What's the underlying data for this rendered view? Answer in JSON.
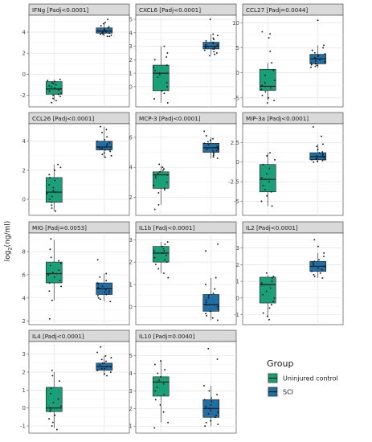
{
  "figure": {
    "ylabel_prefix": "log",
    "ylabel_sub": "2",
    "ylabel_suffix": "(ng/ml)",
    "legend": {
      "title": "Group",
      "items": [
        {
          "label": "Uninjured control",
          "color": "#19a079"
        },
        {
          "label": "SCI",
          "color": "#1f6ea6"
        }
      ]
    }
  },
  "chart_data": [
    {
      "type": "box",
      "title": "IFNg [Padj<0.0001]",
      "yticks": [
        -2,
        0,
        2,
        4
      ],
      "ylim": [
        -3.1,
        5.6
      ],
      "groups": [
        {
          "name": "Uninjured control",
          "q1": -1.9,
          "median": -1.4,
          "q3": -0.7,
          "whisker_low": -2.5,
          "whisker_high": -0.5,
          "points": [
            -0.5,
            -0.6,
            -0.7,
            -0.8,
            -0.9,
            -1.0,
            -1.1,
            -1.2,
            -1.3,
            -1.4,
            -1.5,
            -1.6,
            -1.8,
            -1.9,
            -2.0,
            -2.1,
            -2.3,
            -2.5,
            -2.7
          ]
        },
        {
          "name": "SCI",
          "q1": 3.9,
          "median": 4.1,
          "q3": 4.4,
          "whisker_low": 3.6,
          "whisker_high": 4.8,
          "points": [
            5.2,
            4.9,
            4.8,
            4.6,
            4.5,
            4.4,
            4.3,
            4.2,
            4.2,
            4.1,
            4.1,
            4.0,
            4.0,
            3.9,
            3.9,
            3.8,
            3.8,
            3.7,
            3.6,
            3.6
          ]
        }
      ]
    },
    {
      "type": "box",
      "title": "CXCL6 [Padj<0.0001]",
      "yticks": [
        0,
        1,
        2,
        3,
        4,
        5
      ],
      "ylim": [
        -1.5,
        5.3
      ],
      "groups": [
        {
          "name": "Uninjured control",
          "q1": -0.3,
          "median": 1.0,
          "q3": 1.6,
          "whisker_low": -1.2,
          "whisker_high": 3.0,
          "points": [
            3.0,
            2.5,
            2.2,
            2.0,
            1.6,
            1.4,
            1.2,
            1.0,
            0.9,
            0.7,
            0.3,
            0.0,
            -0.3,
            -0.5,
            -0.9,
            -1.2
          ]
        },
        {
          "name": "SCI",
          "q1": 2.8,
          "median": 3.0,
          "q3": 3.3,
          "whisker_low": 2.4,
          "whisker_high": 3.9,
          "points": [
            5.0,
            3.9,
            3.8,
            3.6,
            3.5,
            3.4,
            3.3,
            3.2,
            3.1,
            3.1,
            3.0,
            3.0,
            2.9,
            2.9,
            2.8,
            2.8,
            2.7,
            2.6,
            2.5,
            2.4,
            2.3
          ]
        }
      ]
    },
    {
      "type": "box",
      "title": "CCL27 [Padj=0.0044]",
      "yticks": [
        -5,
        0,
        5,
        10
      ],
      "ylim": [
        -6.8,
        11.5
      ],
      "groups": [
        {
          "name": "Uninjured control",
          "q1": -3.5,
          "median": -2.7,
          "q3": 0.7,
          "whisker_low": -5.5,
          "whisker_high": 2.0,
          "points": [
            8.2,
            7.8,
            7.0,
            4.3,
            2.0,
            0.5,
            -0.5,
            -1.5,
            -2.0,
            -2.5,
            -2.7,
            -3.0,
            -3.3,
            -3.8,
            -4.5,
            -5.0,
            -5.5,
            -6.0
          ]
        },
        {
          "name": "SCI",
          "q1": 1.8,
          "median": 2.8,
          "q3": 3.7,
          "whisker_low": 1.0,
          "whisker_high": 5.5,
          "points": [
            10.5,
            5.5,
            5.0,
            4.5,
            4.0,
            3.8,
            3.5,
            3.3,
            3.0,
            2.8,
            2.6,
            2.4,
            2.2,
            2.0,
            1.9,
            1.8,
            1.6,
            1.5,
            1.3,
            1.1
          ]
        }
      ]
    },
    {
      "type": "box",
      "title": "CCL26 [Padj<0.0001]",
      "yticks": [
        0,
        2,
        4
      ],
      "ylim": [
        -1.1,
        5.2
      ],
      "groups": [
        {
          "name": "Uninjured control",
          "q1": -0.2,
          "median": 0.5,
          "q3": 1.5,
          "whisker_low": -0.8,
          "whisker_high": 2.4,
          "points": [
            2.4,
            2.2,
            2.0,
            1.7,
            1.5,
            1.3,
            1.0,
            0.8,
            0.6,
            0.5,
            0.4,
            0.2,
            0.0,
            -0.2,
            -0.4,
            -0.6,
            -0.8
          ]
        },
        {
          "name": "SCI",
          "q1": 3.4,
          "median": 3.6,
          "q3": 4.0,
          "whisker_low": 2.9,
          "whisker_high": 5.0,
          "points": [
            5.0,
            4.8,
            4.6,
            4.3,
            4.1,
            4.0,
            3.9,
            3.8,
            3.7,
            3.6,
            3.6,
            3.5,
            3.5,
            3.4,
            3.4,
            3.3,
            3.2,
            3.1,
            3.0,
            2.9
          ]
        }
      ]
    },
    {
      "type": "box",
      "title": "MCP-3 [Padj<0.0001]",
      "yticks": [
        2,
        4,
        6
      ],
      "ylim": [
        0.8,
        6.9
      ],
      "groups": [
        {
          "name": "Uninjured control",
          "q1": 2.6,
          "median": 3.5,
          "q3": 3.7,
          "whisker_low": 1.5,
          "whisker_high": 4.1,
          "points": [
            4.2,
            4.0,
            3.9,
            3.8,
            3.7,
            3.6,
            3.5,
            3.4,
            3.3,
            3.0,
            2.8,
            2.6,
            2.5,
            2.3,
            1.5,
            1.2
          ]
        },
        {
          "name": "SCI",
          "q1": 5.0,
          "median": 5.3,
          "q3": 5.6,
          "whisker_low": 4.6,
          "whisker_high": 6.0,
          "points": [
            6.4,
            6.1,
            5.9,
            5.8,
            5.7,
            5.6,
            5.5,
            5.4,
            5.3,
            5.3,
            5.2,
            5.2,
            5.1,
            5.1,
            5.0,
            4.9,
            4.8,
            4.7,
            4.6
          ]
        }
      ]
    },
    {
      "type": "box",
      "title": "MIP-3a [Padj<0.0001]",
      "yticks": [
        -5.0,
        -2.5,
        0.0,
        2.5
      ],
      "ylim": [
        -6.8,
        4.9
      ],
      "groups": [
        {
          "name": "Uninjured control",
          "q1": -3.8,
          "median": -2.2,
          "q3": -0.3,
          "whisker_low": -5.6,
          "whisker_high": 1.2,
          "points": [
            1.2,
            0.8,
            0.3,
            -0.3,
            -0.8,
            -1.5,
            -2.0,
            -2.2,
            -2.5,
            -3.0,
            -3.5,
            -3.8,
            -4.3,
            -5.0,
            -5.6
          ]
        },
        {
          "name": "SCI",
          "q1": 0.3,
          "median": 0.7,
          "q3": 1.2,
          "whisker_low": 0.0,
          "whisker_high": 2.3,
          "points": [
            4.5,
            3.3,
            2.3,
            2.0,
            1.6,
            1.3,
            1.2,
            1.0,
            0.9,
            0.8,
            0.7,
            0.6,
            0.5,
            0.4,
            0.3,
            0.3,
            0.2,
            0.1,
            0.0
          ]
        }
      ]
    },
    {
      "type": "box",
      "title": "MIG [Padj=0.0053]",
      "yticks": [
        2,
        4,
        6,
        8
      ],
      "ylim": [
        1.7,
        9.6
      ],
      "groups": [
        {
          "name": "Uninjured control",
          "q1": 5.3,
          "median": 6.1,
          "q3": 7.1,
          "whisker_low": 3.8,
          "whisker_high": 9.0,
          "points": [
            9.1,
            8.2,
            7.5,
            7.2,
            7.0,
            6.8,
            6.4,
            6.2,
            6.0,
            5.8,
            5.5,
            5.3,
            5.0,
            4.6,
            3.8,
            2.2
          ]
        },
        {
          "name": "SCI",
          "q1": 4.3,
          "median": 4.8,
          "q3": 5.3,
          "whisker_low": 3.7,
          "whisker_high": 6.1,
          "points": [
            7.3,
            6.1,
            5.8,
            5.5,
            5.3,
            5.2,
            5.0,
            4.9,
            4.8,
            4.7,
            4.6,
            4.5,
            4.4,
            4.3,
            4.2,
            4.0,
            3.9,
            3.7
          ]
        }
      ]
    },
    {
      "type": "box",
      "title": "IL1b [Padj<0.0001]",
      "yticks": [
        0,
        1,
        2,
        3
      ],
      "ylim": [
        -0.8,
        3.3
      ],
      "groups": [
        {
          "name": "Uninjured control",
          "q1": 2.0,
          "median": 2.4,
          "q3": 2.7,
          "whisker_low": 1.5,
          "whisker_high": 2.9,
          "points": [
            2.9,
            2.8,
            2.7,
            2.6,
            2.5,
            2.5,
            2.4,
            2.4,
            2.3,
            2.2,
            2.1,
            2.0,
            1.9,
            1.7,
            1.5,
            1.3
          ]
        },
        {
          "name": "SCI",
          "q1": -0.2,
          "median": 0.1,
          "q3": 0.55,
          "whisker_low": -0.6,
          "whisker_high": 1.3,
          "points": [
            2.8,
            2.5,
            1.3,
            1.0,
            0.8,
            0.6,
            0.5,
            0.4,
            0.3,
            0.2,
            0.1,
            0.1,
            0.0,
            0.0,
            -0.1,
            -0.2,
            -0.3,
            -0.4,
            -0.5,
            -0.6
          ]
        }
      ]
    },
    {
      "type": "box",
      "title": "IL2 [Padj<0.0001]",
      "yticks": [
        -1,
        0,
        1,
        2,
        3
      ],
      "ylim": [
        -1.6,
        3.9
      ],
      "groups": [
        {
          "name": "Uninjured control",
          "q1": -0.3,
          "median": 0.8,
          "q3": 1.25,
          "whisker_low": -1.1,
          "whisker_high": 1.4,
          "points": [
            1.5,
            1.3,
            1.2,
            1.0,
            0.9,
            0.8,
            0.6,
            0.4,
            0.2,
            0.0,
            -0.2,
            -0.4,
            -0.6,
            -0.9,
            -1.1,
            -1.3
          ]
        },
        {
          "name": "SCI",
          "q1": 1.6,
          "median": 1.9,
          "q3": 2.2,
          "whisker_low": 1.2,
          "whisker_high": 2.7,
          "points": [
            3.5,
            3.1,
            2.7,
            2.5,
            2.3,
            2.2,
            2.1,
            2.0,
            1.9,
            1.9,
            1.8,
            1.7,
            1.6,
            1.5,
            1.4,
            1.3,
            1.2
          ]
        }
      ]
    },
    {
      "type": "box",
      "title": "IL4 [Padj<0.0001]",
      "yticks": [
        -1,
        0,
        1,
        2,
        3
      ],
      "ylim": [
        -1.4,
        3.7
      ],
      "groups": [
        {
          "name": "Uninjured control",
          "q1": -0.2,
          "median": 0.0,
          "q3": 1.15,
          "whisker_low": -1.1,
          "whisker_high": 2.0,
          "points": [
            2.1,
            1.8,
            1.5,
            1.1,
            0.8,
            0.5,
            0.3,
            0.1,
            0.0,
            -0.1,
            -0.2,
            -0.4,
            -0.6,
            -0.8,
            -1.0,
            -1.2
          ]
        },
        {
          "name": "SCI",
          "q1": 2.1,
          "median": 2.3,
          "q3": 2.5,
          "whisker_low": 1.8,
          "whisker_high": 2.9,
          "points": [
            3.4,
            3.1,
            2.9,
            2.8,
            2.7,
            2.6,
            2.5,
            2.5,
            2.4,
            2.3,
            2.3,
            2.2,
            2.2,
            2.1,
            2.1,
            2.0,
            1.9,
            1.8
          ]
        }
      ]
    },
    {
      "type": "box",
      "title": "IL10 [Padj=0.0040]",
      "yticks": [
        1,
        2,
        3,
        4,
        5
      ],
      "ylim": [
        0.6,
        5.8
      ],
      "groups": [
        {
          "name": "Uninjured control",
          "q1": 2.7,
          "median": 3.5,
          "q3": 3.8,
          "whisker_low": 1.2,
          "whisker_high": 4.7,
          "points": [
            4.7,
            4.5,
            4.2,
            4.0,
            3.8,
            3.6,
            3.5,
            3.4,
            3.2,
            3.0,
            2.8,
            2.5,
            2.2,
            1.8,
            1.2,
            0.9
          ]
        },
        {
          "name": "SCI",
          "q1": 1.5,
          "median": 2.0,
          "q3": 2.5,
          "whisker_low": 1.0,
          "whisker_high": 3.3,
          "points": [
            5.4,
            4.8,
            3.3,
            3.0,
            2.8,
            2.6,
            2.5,
            2.4,
            2.2,
            2.1,
            2.0,
            1.9,
            1.8,
            1.7,
            1.6,
            1.5,
            1.3,
            1.2,
            1.1,
            1.0
          ]
        }
      ]
    }
  ]
}
